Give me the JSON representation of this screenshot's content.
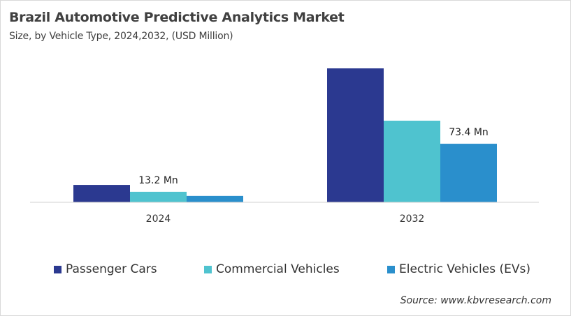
{
  "header": {
    "title": "Brazil Automotive Predictive Analytics Market",
    "subtitle": "Size, by Vehicle Type, 2024,2032, (USD Million)"
  },
  "chart_data": {
    "type": "bar",
    "title": "Brazil Automotive Predictive Analytics Market",
    "subtitle": "Size, by Vehicle Type, 2024,2032, (USD Million)",
    "categories": [
      "2024",
      "2032"
    ],
    "series": [
      {
        "name": "Passenger Cars",
        "color": "#2b3990",
        "values": [
          21.8,
          167.9
        ]
      },
      {
        "name": "Commercial Vehicles",
        "color": "#4fc3cf",
        "values": [
          13.2,
          102.3
        ]
      },
      {
        "name": "Electric Vehicles (EVs)",
        "color": "#2a8fcc",
        "values": [
          8.0,
          73.4
        ]
      }
    ],
    "data_labels": [
      {
        "series": 1,
        "category": 0,
        "text": "13.2 Mn"
      },
      {
        "series": 2,
        "category": 1,
        "text": "73.4 Mn"
      }
    ],
    "ylim": [
      0,
      220
    ],
    "grid": false,
    "legend": "bottom"
  },
  "source": "Source: www.kbvresearch.com"
}
